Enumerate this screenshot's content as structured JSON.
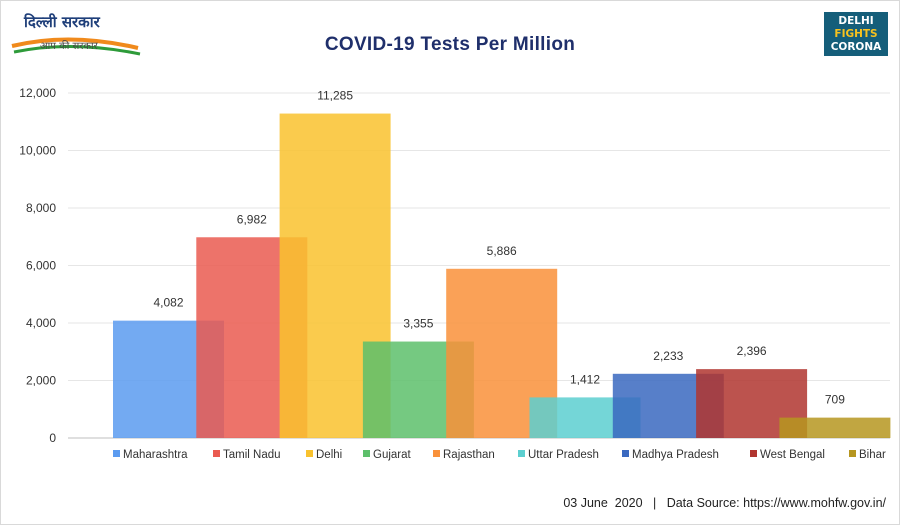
{
  "header": {
    "logo_text": "दिल्ली सरकार",
    "logo_subtext": "आप की सरकार",
    "badge_line1": "DELHI",
    "badge_line2": "FIGHTS",
    "badge_line3": "CORONA"
  },
  "footer": {
    "date": "03 June  2020",
    "separator": "|",
    "source": "Data Source: https://www.mohfw.gov.in/"
  },
  "chart_data": {
    "type": "bar",
    "title": "COVID-19 Tests Per Million",
    "xlabel": "",
    "ylabel": "",
    "ylim": [
      0,
      12000
    ],
    "yticks": [
      0,
      2000,
      4000,
      6000,
      8000,
      10000,
      12000
    ],
    "ytick_labels": [
      "0",
      "2,000",
      "4,000",
      "6,000",
      "8,000",
      "10,000",
      "12,000"
    ],
    "grid": true,
    "legend_position": "bottom",
    "categories": [
      "Maharashtra",
      "Tamil Nadu",
      "Delhi",
      "Gujarat",
      "Rajasthan",
      "Uttar Pradesh",
      "Madhya Pradesh",
      "West Bengal",
      "Bihar"
    ],
    "values": [
      4082,
      6982,
      11285,
      3355,
      5886,
      1412,
      2233,
      2396,
      709
    ],
    "value_labels": [
      "4,082",
      "6,982",
      "11,285",
      "3,355",
      "5,886",
      "1,412",
      "2,233",
      "2,396",
      "709"
    ],
    "colors": [
      "#5b9bf0",
      "#ea5a50",
      "#f9c22e",
      "#5dbf6b",
      "#f9913a",
      "#5ccfd0",
      "#3a69c0",
      "#b0352f",
      "#b69620"
    ]
  }
}
